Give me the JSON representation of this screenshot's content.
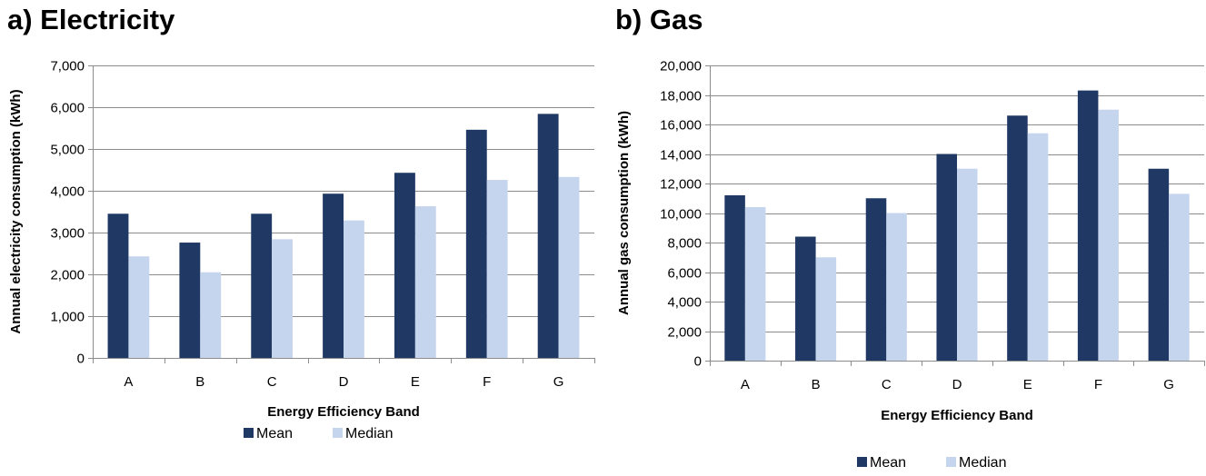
{
  "colors": {
    "mean": "#1f3864",
    "median": "#c6d5ee",
    "grid": "#8c8c8c"
  },
  "chart_data": [
    {
      "type": "bar",
      "title": "a) Electricity",
      "xlabel": "Energy Efficiency Band",
      "ylabel": "Annual electricity consumption (kWh)",
      "categories": [
        "A",
        "B",
        "C",
        "D",
        "E",
        "F",
        "G"
      ],
      "ylim": [
        0,
        7000
      ],
      "yticks": [
        "0",
        "1,000",
        "2,000",
        "3,000",
        "4,000",
        "5,000",
        "6,000",
        "7,000"
      ],
      "grid": true,
      "legend": "bottom",
      "series": [
        {
          "name": "Mean",
          "values": [
            3450,
            2760,
            3450,
            3930,
            4430,
            5460,
            5840
          ]
        },
        {
          "name": "Median",
          "values": [
            2430,
            2050,
            2840,
            3290,
            3630,
            4260,
            4330
          ]
        }
      ]
    },
    {
      "type": "bar",
      "title": "b) Gas",
      "xlabel": "Energy Efficiency Band",
      "ylabel": "Annual gas consumption (kWh)",
      "categories": [
        "A",
        "B",
        "C",
        "D",
        "E",
        "F",
        "G"
      ],
      "ylim": [
        0,
        20000
      ],
      "yticks": [
        "0",
        "2,000",
        "4,000",
        "6,000",
        "8,000",
        "10,000",
        "12,000",
        "14,000",
        "16,000",
        "18,000",
        "20,000"
      ],
      "grid": true,
      "legend": "bottom",
      "series": [
        {
          "name": "Mean",
          "values": [
            11200,
            8400,
            11000,
            14000,
            16600,
            18300,
            13000
          ]
        },
        {
          "name": "Median",
          "values": [
            10400,
            7000,
            10000,
            13000,
            15400,
            17000,
            11300
          ]
        }
      ]
    }
  ]
}
